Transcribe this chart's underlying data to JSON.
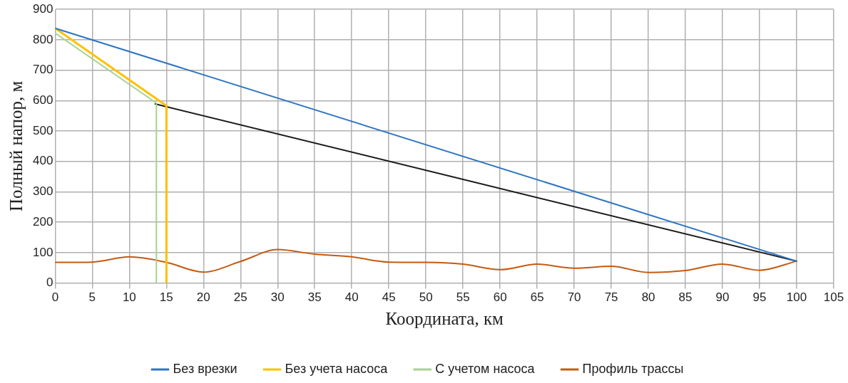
{
  "chart_data": {
    "type": "line",
    "xlabel": "Координата, км",
    "ylabel": "Полный напор, м",
    "xlim": [
      0,
      105
    ],
    "xticks": [
      0,
      5,
      10,
      15,
      20,
      25,
      30,
      35,
      40,
      45,
      50,
      55,
      60,
      65,
      70,
      75,
      80,
      85,
      90,
      95,
      100,
      105
    ],
    "ylim": [
      0,
      900
    ],
    "yticks": [
      0,
      100,
      200,
      300,
      400,
      500,
      600,
      700,
      800,
      900
    ],
    "grid": true,
    "legend": "bottom",
    "marker": "none",
    "line_style": "solid",
    "series": [
      {
        "name": "Без врезки",
        "color": "#2e75c2",
        "x": [
          0,
          100
        ],
        "values": [
          838,
          72
        ]
      },
      {
        "name": "Без учета насоса",
        "color": "#ffc000",
        "x": [
          0,
          15,
          15
        ],
        "values": [
          838,
          583,
          0
        ]
      },
      {
        "name": "С учетом насоса",
        "color": "#a9d18e",
        "x": [
          0,
          13.65,
          13.65
        ],
        "values": [
          822,
          592,
          0
        ]
      },
      {
        "name": "Профиль трассы",
        "color": "#c55a11",
        "x": [
          0,
          5,
          10,
          15,
          20,
          25,
          30,
          35,
          40,
          45,
          50,
          55,
          60,
          65,
          70,
          75,
          80,
          85,
          90,
          95,
          100
        ],
        "values": [
          68,
          69,
          86,
          68,
          36,
          71,
          110,
          95,
          86,
          69,
          68,
          62,
          44,
          62,
          49,
          55,
          35,
          41,
          62,
          42,
          72
        ]
      },
      {
        "color": "#1a1a1a",
        "x": [
          13.5,
          100
        ],
        "values": [
          589,
          72
        ]
      }
    ]
  }
}
